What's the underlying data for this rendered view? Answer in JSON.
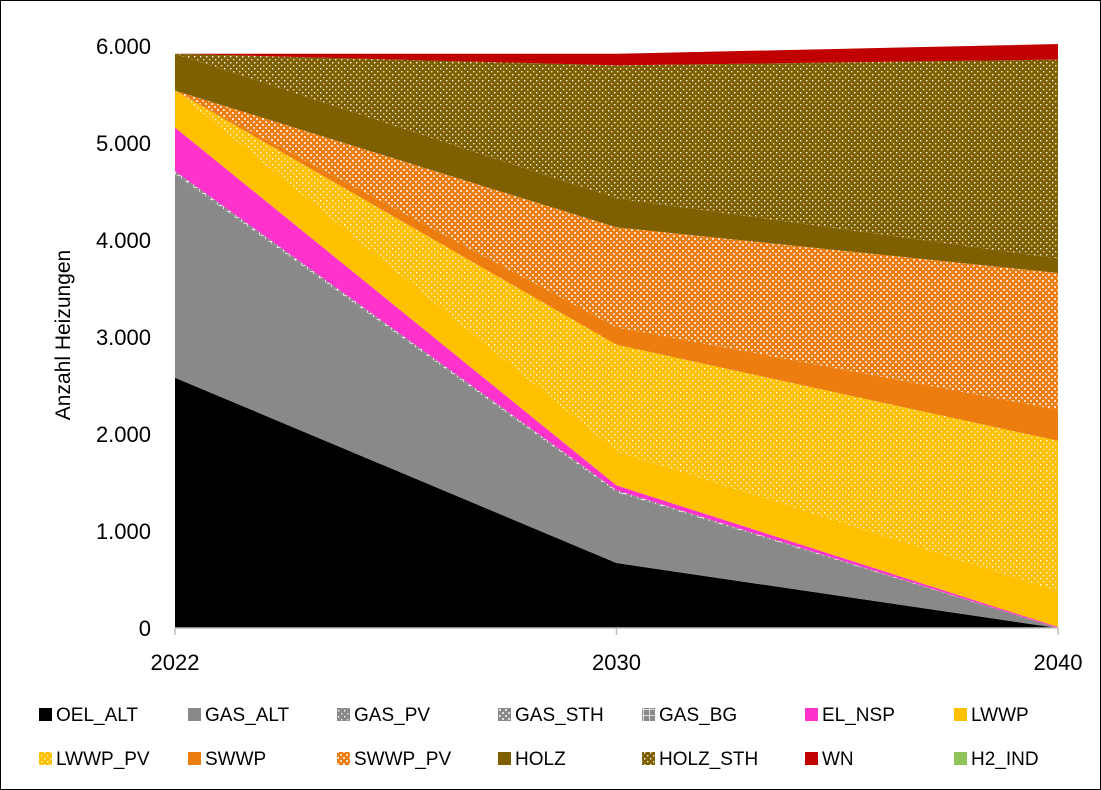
{
  "chart_data": {
    "type": "area",
    "stacked": true,
    "x": [
      "2022",
      "2030",
      "2040"
    ],
    "xlabel": "",
    "ylabel": "Anzahl Heizungen",
    "ylim": [
      0,
      6000
    ],
    "yticks": [
      0,
      1000,
      2000,
      3000,
      4000,
      5000,
      6000
    ],
    "ytick_labels": [
      "0",
      "1.000",
      "2.000",
      "3.000",
      "4.000",
      "5.000",
      "6.000"
    ],
    "grid": false,
    "legend_position": "bottom",
    "series": [
      {
        "name": "OEL_ALT",
        "values": [
          2580,
          670,
          0
        ],
        "color": "#000000",
        "pattern": "solid"
      },
      {
        "name": "GAS_ALT",
        "values": [
          2100,
          730,
          0
        ],
        "color": "#898989",
        "pattern": "solid"
      },
      {
        "name": "GAS_PV",
        "values": [
          0,
          0,
          0
        ],
        "color": "#898989",
        "pattern": "dots"
      },
      {
        "name": "GAS_STH",
        "values": [
          0,
          0,
          0
        ],
        "color": "#898989",
        "pattern": "check"
      },
      {
        "name": "GAS_BG",
        "values": [
          30,
          20,
          0
        ],
        "color": "#898989",
        "pattern": "grid"
      },
      {
        "name": "EL_NSP",
        "values": [
          450,
          50,
          10
        ],
        "color": "#FF33CC",
        "pattern": "solid"
      },
      {
        "name": "LWWP",
        "values": [
          380,
          350,
          370
        ],
        "color": "#FFC000",
        "pattern": "solid"
      },
      {
        "name": "LWWP_PV",
        "values": [
          0,
          1100,
          1550
        ],
        "color": "#FFC000",
        "pattern": "dots"
      },
      {
        "name": "SWWP",
        "values": [
          0,
          180,
          320
        ],
        "color": "#ED7D0F",
        "pattern": "solid"
      },
      {
        "name": "SWWP_PV",
        "values": [
          0,
          1030,
          1410
        ],
        "color": "#ED7D0F",
        "pattern": "check"
      },
      {
        "name": "HOLZ",
        "values": [
          380,
          300,
          150
        ],
        "color": "#7F6000",
        "pattern": "solid"
      },
      {
        "name": "HOLZ_STH",
        "values": [
          0,
          1370,
          2050
        ],
        "color": "#7F6000",
        "pattern": "dots"
      },
      {
        "name": "WN",
        "values": [
          0,
          120,
          160
        ],
        "color": "#C00000",
        "pattern": "solid"
      },
      {
        "name": "H2_IND",
        "values": [
          0,
          0,
          0
        ],
        "color": "#8FC45A",
        "pattern": "solid"
      }
    ]
  }
}
